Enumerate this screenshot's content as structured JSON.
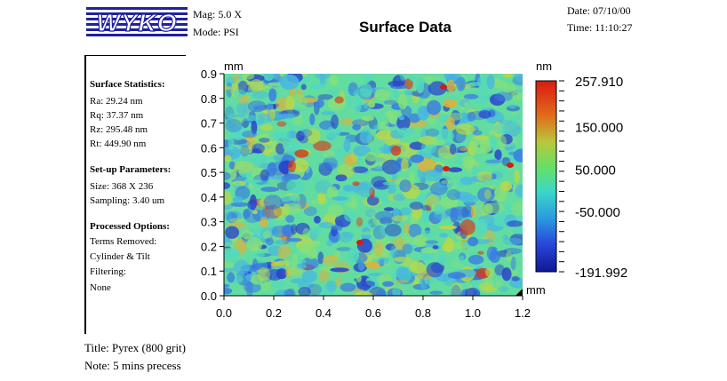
{
  "header": {
    "logo_text": "WYKO",
    "mag_label": "Mag:",
    "mag_value": "5.0 X",
    "mode_label": "Mode:",
    "mode_value": "PSI",
    "title": "Surface Data",
    "date_label": "Date:",
    "date_value": "07/10/00",
    "time_label": "Time:",
    "time_value": "11:10:27"
  },
  "stats": {
    "surface_heading": "Surface Statistics:",
    "ra": "Ra:  29.24 nm",
    "rq": "Rq:  37.37 nm",
    "rz": "Rz:  295.48 nm",
    "rt": "Rt:   449.90 nm",
    "setup_heading": "Set-up Parameters:",
    "size": "Size: 368 X 236",
    "sampling": "Sampling:  3.40 um",
    "processed_heading": "Processed Options:",
    "terms_label": "Terms Removed:",
    "terms_value": "Cylinder & Tilt",
    "filtering_label": "Filtering:",
    "filtering_value": "None"
  },
  "footer": {
    "title": "Title:  Pyrex (800 grit)",
    "note": "Note:  5 mins precess"
  },
  "colors": {
    "low": "#1a1a8c",
    "mid_low": "#3b78d8",
    "mid": "#52d8b0",
    "mid_high": "#b8d84a",
    "high": "#d83a1a"
  },
  "chart_data": {
    "type": "heatmap",
    "title": "Surface Data",
    "x_unit": "mm",
    "y_unit": "mm",
    "z_unit": "nm",
    "xlim": [
      0.0,
      1.2
    ],
    "ylim": [
      0.0,
      0.9
    ],
    "x_ticks": [
      "0.0",
      "0.2",
      "0.4",
      "0.6",
      "0.8",
      "1.0",
      "1.2"
    ],
    "y_ticks": [
      "0.9",
      "0.8",
      "0.7",
      "0.6",
      "0.5",
      "0.4",
      "0.3",
      "0.2",
      "0.1",
      "0.0"
    ],
    "colorbar_labels": [
      "257.910",
      "150.000",
      "50.000",
      "-50.000",
      "-191.992"
    ],
    "zlim": [
      -191.992,
      257.91
    ]
  }
}
